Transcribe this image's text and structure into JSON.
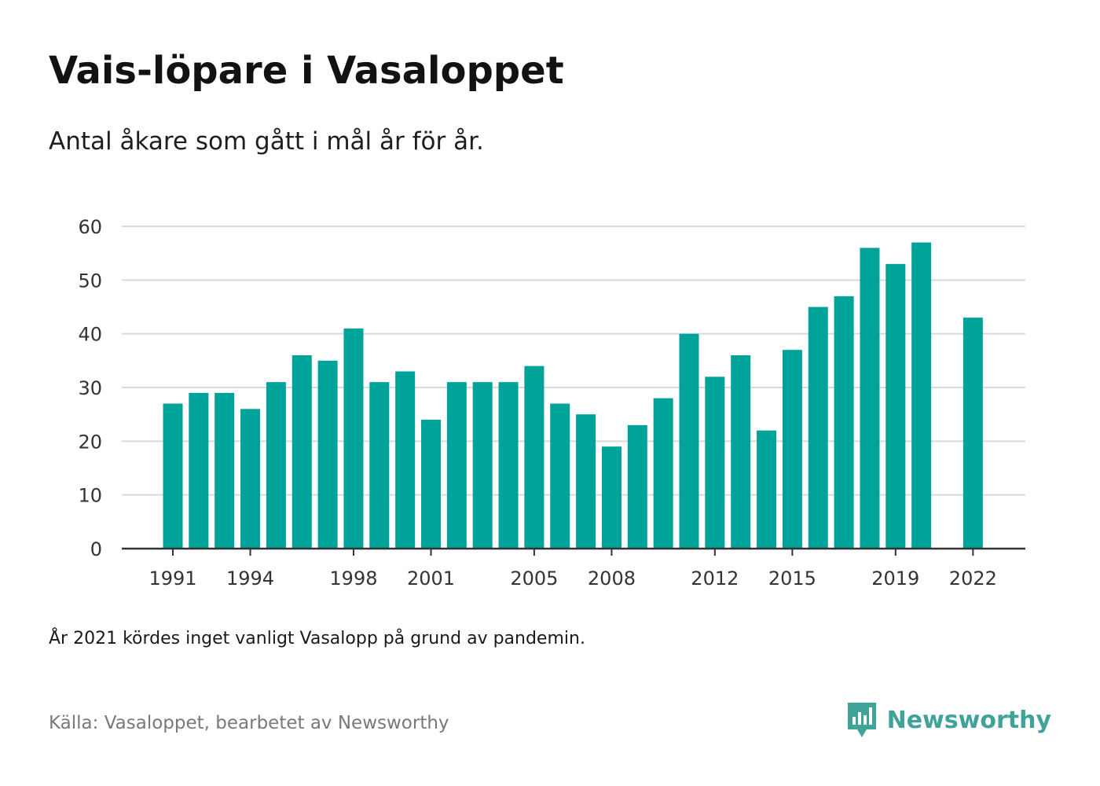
{
  "header": {
    "title": "Vais-löpare i Vasaloppet",
    "subtitle": "Antal åkare som gått i mål år för år."
  },
  "footer": {
    "note": "År 2021 kördes inget vanligt Vasalopp på grund av pandemin.",
    "source": "Källa: Vasaloppet, bearbetet av Newsworthy",
    "brand": "Newsworthy",
    "brand_icon": "newsworthy-logo-icon"
  },
  "colors": {
    "bar": "#00a39a",
    "grid": "#d9d9d9",
    "axis": "#333333",
    "brand": "#3fa39a"
  },
  "chart_data": {
    "type": "bar",
    "categories": [
      1991,
      1992,
      1993,
      1994,
      1995,
      1996,
      1997,
      1998,
      1999,
      2000,
      2001,
      2002,
      2003,
      2004,
      2005,
      2006,
      2007,
      2008,
      2009,
      2010,
      2011,
      2012,
      2013,
      2014,
      2015,
      2016,
      2017,
      2018,
      2019,
      2020,
      2021,
      2022
    ],
    "values": [
      27,
      29,
      29,
      26,
      31,
      36,
      35,
      41,
      31,
      33,
      24,
      31,
      31,
      31,
      34,
      27,
      25,
      19,
      23,
      28,
      40,
      32,
      36,
      22,
      37,
      45,
      47,
      56,
      53,
      57,
      null,
      43
    ],
    "x_tick_labels": [
      "1991",
      "1994",
      "1998",
      "2001",
      "2005",
      "2008",
      "2012",
      "2015",
      "2019",
      "2022"
    ],
    "y_ticks": [
      0,
      10,
      20,
      30,
      40,
      50,
      60
    ],
    "ylim": [
      0,
      60
    ],
    "grid": true,
    "legend": "none"
  }
}
